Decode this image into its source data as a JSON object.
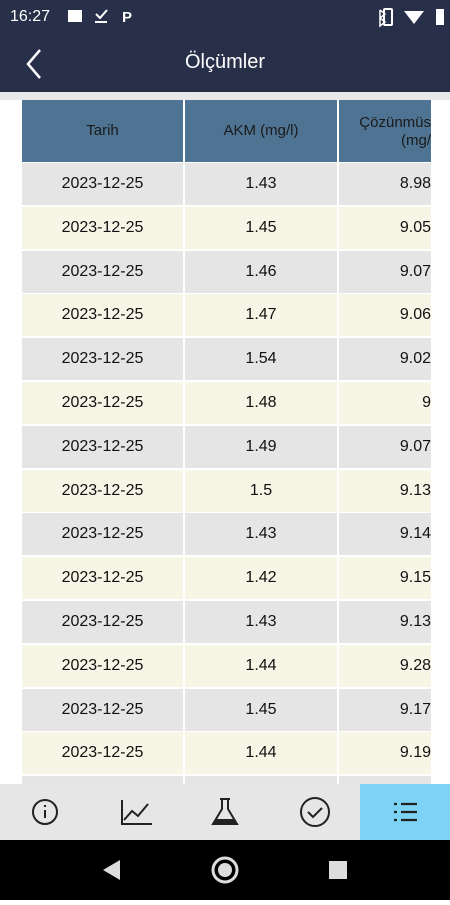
{
  "status_bar": {
    "time": "16:27"
  },
  "header": {
    "title": "Ölçümler"
  },
  "table": {
    "columns": [
      "Tarih",
      "AKM (mg/l)",
      "Çözünmüs (mg/"
    ],
    "rows": [
      [
        "2023-12-25",
        "1.43",
        "8.98"
      ],
      [
        "2023-12-25",
        "1.45",
        "9.05"
      ],
      [
        "2023-12-25",
        "1.46",
        "9.07"
      ],
      [
        "2023-12-25",
        "1.47",
        "9.06"
      ],
      [
        "2023-12-25",
        "1.54",
        "9.02"
      ],
      [
        "2023-12-25",
        "1.48",
        "9"
      ],
      [
        "2023-12-25",
        "1.49",
        "9.07"
      ],
      [
        "2023-12-25",
        "1.5",
        "9.13"
      ],
      [
        "2023-12-25",
        "1.43",
        "9.14"
      ],
      [
        "2023-12-25",
        "1.42",
        "9.15"
      ],
      [
        "2023-12-25",
        "1.43",
        "9.13"
      ],
      [
        "2023-12-25",
        "1.44",
        "9.28"
      ],
      [
        "2023-12-25",
        "1.45",
        "9.17"
      ],
      [
        "2023-12-25",
        "1.44",
        "9.19"
      ]
    ]
  }
}
